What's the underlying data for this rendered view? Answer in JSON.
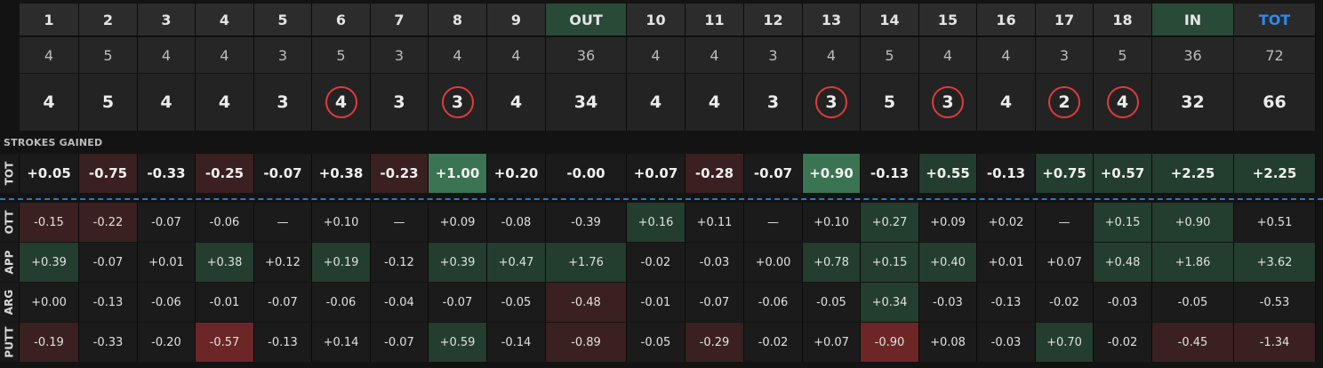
{
  "holes": [
    "1",
    "2",
    "3",
    "4",
    "5",
    "6",
    "7",
    "8",
    "9",
    "OUT",
    "10",
    "11",
    "12",
    "13",
    "14",
    "15",
    "16",
    "17",
    "18",
    "IN",
    "TOT"
  ],
  "par": [
    "4",
    "5",
    "4",
    "4",
    "3",
    "5",
    "3",
    "4",
    "4",
    "36",
    "4",
    "4",
    "3",
    "4",
    "5",
    "4",
    "4",
    "3",
    "5",
    "36",
    "72"
  ],
  "score": [
    "4",
    "5",
    "4",
    "4",
    "3",
    "4",
    "3",
    "3",
    "4",
    "34",
    "4",
    "4",
    "3",
    "3",
    "5",
    "3",
    "4",
    "2",
    "4",
    "32",
    "66"
  ],
  "birdie_flags": [
    false,
    false,
    false,
    false,
    false,
    true,
    false,
    true,
    false,
    false,
    false,
    false,
    false,
    true,
    false,
    true,
    false,
    true,
    true,
    false,
    false
  ],
  "section_title": "STROKES GAINED",
  "sg_total": {
    "label": "TOT",
    "values": [
      "+0.05",
      "-0.75",
      "-0.33",
      "-0.25",
      "-0.07",
      "+0.38",
      "-0.23",
      "+1.00",
      "+0.20",
      "-0.00",
      "+0.07",
      "-0.28",
      "-0.07",
      "+0.90",
      "-0.13",
      "+0.55",
      "-0.13",
      "+0.75",
      "+0.57",
      "+2.25",
      "+2.25"
    ],
    "shades": [
      "n",
      "r",
      "n",
      "r",
      "n",
      "n",
      "r",
      "G",
      "n",
      "n",
      "n",
      "r",
      "n",
      "G",
      "n",
      "g",
      "n",
      "g",
      "g",
      "g",
      "g"
    ]
  },
  "sg_categories": [
    {
      "label": "OTT",
      "values": [
        "-0.15",
        "-0.22",
        "-0.07",
        "-0.06",
        "—",
        "+0.10",
        "—",
        "+0.09",
        "-0.08",
        "-0.39",
        "+0.16",
        "+0.11",
        "—",
        "+0.10",
        "+0.27",
        "+0.09",
        "+0.02",
        "—",
        "+0.15",
        "+0.90",
        "+0.51"
      ],
      "shades": [
        "r",
        "r",
        "n",
        "n",
        "n",
        "n",
        "n",
        "n",
        "n",
        "n",
        "g",
        "n",
        "n",
        "n",
        "g",
        "n",
        "n",
        "n",
        "g",
        "g",
        "n"
      ]
    },
    {
      "label": "APP",
      "values": [
        "+0.39",
        "-0.07",
        "+0.01",
        "+0.38",
        "+0.12",
        "+0.19",
        "-0.12",
        "+0.39",
        "+0.47",
        "+1.76",
        "-0.02",
        "-0.03",
        "+0.00",
        "+0.78",
        "+0.15",
        "+0.40",
        "+0.01",
        "+0.07",
        "+0.48",
        "+1.86",
        "+3.62"
      ],
      "shades": [
        "g",
        "n",
        "n",
        "g",
        "n",
        "g",
        "n",
        "g",
        "g",
        "g",
        "n",
        "n",
        "n",
        "g",
        "g",
        "g",
        "n",
        "n",
        "g",
        "g",
        "g"
      ]
    },
    {
      "label": "ARG",
      "values": [
        "+0.00",
        "-0.13",
        "-0.06",
        "-0.01",
        "-0.07",
        "-0.06",
        "-0.04",
        "-0.07",
        "-0.05",
        "-0.48",
        "-0.01",
        "-0.07",
        "-0.06",
        "-0.05",
        "+0.34",
        "-0.03",
        "-0.13",
        "-0.02",
        "-0.03",
        "-0.05",
        "-0.53"
      ],
      "shades": [
        "n",
        "n",
        "n",
        "n",
        "n",
        "n",
        "n",
        "n",
        "n",
        "r",
        "n",
        "n",
        "n",
        "n",
        "g",
        "n",
        "n",
        "n",
        "n",
        "n",
        "n"
      ]
    },
    {
      "label": "PUTT",
      "values": [
        "-0.19",
        "-0.33",
        "-0.20",
        "-0.57",
        "-0.13",
        "+0.14",
        "-0.07",
        "+0.59",
        "-0.14",
        "-0.89",
        "-0.05",
        "-0.29",
        "-0.02",
        "+0.07",
        "-0.90",
        "+0.08",
        "-0.03",
        "+0.70",
        "-0.02",
        "-0.45",
        "-1.34"
      ],
      "shades": [
        "r",
        "n",
        "n",
        "R",
        "n",
        "n",
        "n",
        "g",
        "n",
        "r",
        "n",
        "r",
        "n",
        "n",
        "R",
        "n",
        "n",
        "g",
        "n",
        "r",
        "r"
      ]
    }
  ],
  "colors": {
    "neutral": "#1b1b1b",
    "green": "#233d2e",
    "green_strong": "#3b7453",
    "red": "#3a2020",
    "red_strong": "#6c2626",
    "subtotal_header": "#2a4a38",
    "tot_blue": "#2f8ae8",
    "birdie_ring": "#e03b3b",
    "separator": "#2a78c4"
  }
}
